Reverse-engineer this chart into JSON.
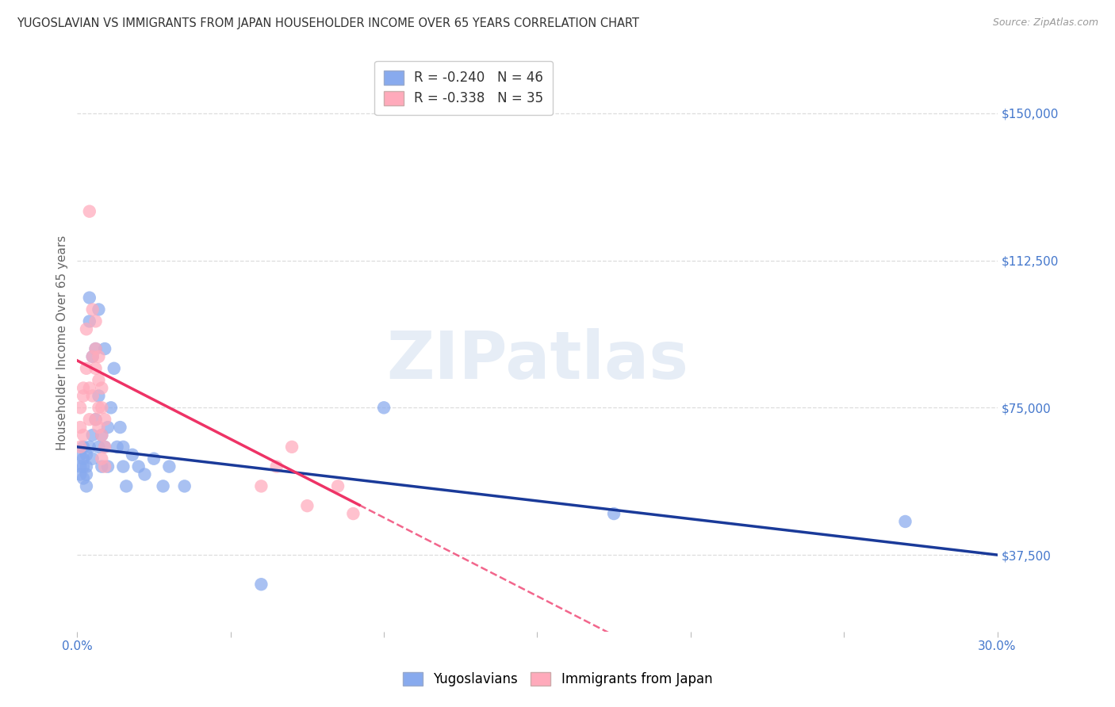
{
  "title": "YUGOSLAVIAN VS IMMIGRANTS FROM JAPAN HOUSEHOLDER INCOME OVER 65 YEARS CORRELATION CHART",
  "source": "Source: ZipAtlas.com",
  "ylabel": "Householder Income Over 65 years",
  "xlim": [
    0.0,
    0.3
  ],
  "ylim": [
    18000,
    165000
  ],
  "yticks": [
    37500,
    75000,
    112500,
    150000
  ],
  "ytick_labels": [
    "$37,500",
    "$75,000",
    "$112,500",
    "$150,000"
  ],
  "xtick_positions": [
    0.0,
    0.05,
    0.1,
    0.15,
    0.2,
    0.25,
    0.3
  ],
  "xtick_labels_shown": [
    "0.0%",
    "",
    "",
    "",
    "",
    "",
    "30.0%"
  ],
  "background_color": "#ffffff",
  "grid_color": "#dddddd",
  "watermark_text": "ZIPatlas",
  "blue_color": "#88aaee",
  "pink_color": "#ffaabb",
  "blue_line_color": "#1a3a99",
  "pink_line_color": "#ee3366",
  "title_color": "#333333",
  "axis_color": "#4477cc",
  "yug_x": [
    0.001,
    0.001,
    0.001,
    0.002,
    0.002,
    0.002,
    0.002,
    0.003,
    0.003,
    0.003,
    0.003,
    0.004,
    0.004,
    0.004,
    0.005,
    0.005,
    0.005,
    0.006,
    0.006,
    0.007,
    0.007,
    0.007,
    0.008,
    0.008,
    0.009,
    0.009,
    0.01,
    0.01,
    0.011,
    0.012,
    0.013,
    0.014,
    0.015,
    0.015,
    0.016,
    0.018,
    0.02,
    0.022,
    0.025,
    0.028,
    0.03,
    0.035,
    0.06,
    0.1,
    0.175,
    0.27
  ],
  "yug_y": [
    63000,
    60000,
    58000,
    65000,
    62000,
    60000,
    57000,
    63000,
    60000,
    58000,
    55000,
    97000,
    103000,
    65000,
    88000,
    68000,
    62000,
    72000,
    90000,
    100000,
    78000,
    65000,
    68000,
    60000,
    90000,
    65000,
    70000,
    60000,
    75000,
    85000,
    65000,
    70000,
    65000,
    60000,
    55000,
    63000,
    60000,
    58000,
    62000,
    55000,
    60000,
    55000,
    30000,
    75000,
    48000,
    46000
  ],
  "jpn_x": [
    0.001,
    0.001,
    0.001,
    0.002,
    0.002,
    0.002,
    0.003,
    0.003,
    0.004,
    0.004,
    0.004,
    0.005,
    0.005,
    0.005,
    0.006,
    0.006,
    0.006,
    0.006,
    0.007,
    0.007,
    0.007,
    0.007,
    0.008,
    0.008,
    0.008,
    0.008,
    0.009,
    0.009,
    0.009,
    0.06,
    0.065,
    0.07,
    0.075,
    0.085,
    0.09
  ],
  "jpn_y": [
    75000,
    70000,
    65000,
    80000,
    78000,
    68000,
    95000,
    85000,
    125000,
    80000,
    72000,
    100000,
    88000,
    78000,
    97000,
    90000,
    85000,
    72000,
    88000,
    82000,
    75000,
    70000,
    80000,
    75000,
    68000,
    62000,
    72000,
    65000,
    60000,
    55000,
    60000,
    65000,
    50000,
    55000,
    48000
  ],
  "yug_line_x0": 0.0,
  "yug_line_y0": 65000,
  "yug_line_x1": 0.3,
  "yug_line_y1": 37500,
  "jpn_line_x0": 0.0,
  "jpn_line_y0": 87000,
  "jpn_line_x1": 0.1,
  "jpn_line_y1": 47000
}
